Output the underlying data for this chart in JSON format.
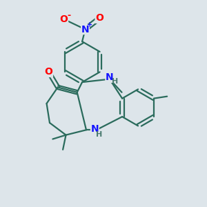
{
  "bg_color": "#dde5ea",
  "bond_color": "#2a6b5c",
  "bond_width": 1.6,
  "atom_colors": {
    "N": "#1414ff",
    "O": "#ff0000",
    "H": "#4a7a70",
    "C": "#2a6b5c"
  },
  "figsize": [
    3.0,
    3.0
  ],
  "dpi": 100
}
